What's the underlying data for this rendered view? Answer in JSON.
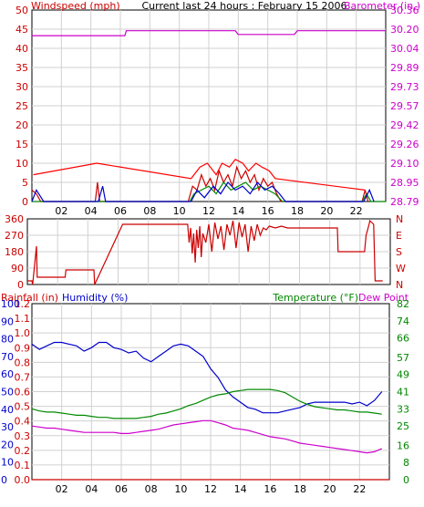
{
  "chart_data": [
    {
      "type": "line",
      "panel": "wind-barometer",
      "title": "Current last 24 hours : February 15 2006",
      "x_tick_labels": [
        "02",
        "04",
        "06",
        "08",
        "10",
        "12",
        "14",
        "16",
        "18",
        "20",
        "22"
      ],
      "xlim": [
        0,
        24
      ],
      "y_left": {
        "label": "Windspeed (mph)",
        "ylim": [
          0,
          50
        ],
        "tick_labels": [
          "0",
          "5",
          "10",
          "15",
          "20",
          "25",
          "30",
          "35",
          "40",
          "45",
          "50"
        ]
      },
      "y_right": {
        "label": "Barometer (in.)",
        "ylim": [
          28.79,
          30.36
        ],
        "tick_labels": [
          "28.79",
          "28.95",
          "29.10",
          "29.26",
          "29.42",
          "29.57",
          "29.73",
          "29.89",
          "30.04",
          "30.20",
          "30.36"
        ]
      },
      "grid": true,
      "colors": {
        "wind": "#cc0000",
        "gust": "#ff0000",
        "avg_wind": "#008800",
        "wind_alt": "#0000cc",
        "barometer": "#cc00cc"
      },
      "series": [
        {
          "name": "Barometer (in.)",
          "axis": "right",
          "color": "#cc00cc",
          "x": [
            0,
            6.3,
            6.4,
            13.8,
            14.0,
            17.8,
            18.0,
            24
          ],
          "y": [
            30.15,
            30.15,
            30.19,
            30.19,
            30.16,
            30.16,
            30.19,
            30.19
          ]
        },
        {
          "axis": "left",
          "color": "#cc0000",
          "x": [
            0,
            0.3,
            0.6,
            4.3,
            4.45,
            4.6,
            10.6,
            10.9,
            11.2,
            11.5,
            11.8,
            12.1,
            12.4,
            12.7,
            13.0,
            13.3,
            13.6,
            13.9,
            14.2,
            14.5,
            14.8,
            15.1,
            15.4,
            15.7,
            16.0,
            16.3,
            16.6,
            16.9,
            22.4,
            22.6,
            22.8
          ],
          "y": [
            3,
            2,
            0,
            0,
            5,
            0,
            0,
            4,
            3,
            7,
            4,
            6,
            3,
            8,
            5,
            7,
            4,
            9,
            6,
            8,
            5,
            7,
            3,
            6,
            4,
            5,
            2,
            0,
            0,
            3,
            0
          ]
        },
        {
          "axis": "left",
          "color": "#ff0000",
          "x": [
            0.1,
            4.4,
            10.8,
            11.4,
            11.9,
            12.5,
            12.9,
            13.4,
            13.8,
            14.3,
            14.7,
            15.2,
            15.6,
            16.1,
            16.5,
            22.6
          ],
          "y": [
            7,
            10,
            6,
            9,
            10,
            7,
            10,
            9,
            11,
            10,
            8,
            10,
            9,
            8,
            6,
            3
          ]
        },
        {
          "axis": "left",
          "color": "#008800",
          "x": [
            0,
            10.7,
            11.0,
            11.5,
            12.0,
            12.5,
            13.0,
            13.5,
            14.0,
            14.5,
            15.0,
            15.5,
            16.0,
            16.5,
            17.0,
            22.4,
            22.7,
            23.0,
            24
          ],
          "y": [
            0,
            0,
            2,
            3,
            4,
            2,
            5,
            3,
            4,
            5,
            3,
            4,
            3,
            2,
            0,
            0,
            2,
            0,
            0
          ]
        },
        {
          "axis": "left",
          "color": "#0000cc",
          "x": [
            0,
            0.3,
            0.8,
            4.5,
            4.8,
            5.0,
            10.8,
            11.2,
            11.7,
            12.3,
            12.8,
            13.3,
            13.8,
            14.3,
            14.8,
            15.3,
            15.8,
            16.3,
            16.8,
            17.2,
            22.5,
            22.9,
            23.2
          ],
          "y": [
            0,
            3,
            0,
            0,
            4,
            0,
            0,
            3,
            1,
            4,
            2,
            5,
            3,
            4,
            2,
            5,
            3,
            4,
            2,
            0,
            0,
            3,
            0
          ]
        }
      ]
    },
    {
      "type": "line",
      "panel": "wind-direction",
      "xlim": [
        0,
        24
      ],
      "y_left": {
        "ylim": [
          0,
          360
        ],
        "tick_labels": [
          "0",
          "90",
          "180",
          "270",
          "360"
        ]
      },
      "y_right": {
        "tick_labels": [
          "N",
          "E",
          "S",
          "W",
          "N"
        ]
      },
      "grid": true,
      "colors": {
        "direction": "#cc0000"
      },
      "series": [
        {
          "axis": "left",
          "color": "#cc0000",
          "x": [
            0,
            0.3,
            0.35,
            0.6,
            0.65,
            2.5,
            2.55,
            4.4,
            4.45,
            6.3,
            6.35,
            10.6,
            10.7,
            10.8,
            10.9,
            11.0,
            11.1,
            11.2,
            11.3,
            11.4,
            11.5,
            11.6,
            11.8,
            12.0,
            12.2,
            12.4,
            12.6,
            12.8,
            13.0,
            13.2,
            13.4,
            13.6,
            13.8,
            14.0,
            14.2,
            14.4,
            14.6,
            14.8,
            15.0,
            15.2,
            15.4,
            15.6,
            15.8,
            16.0,
            16.4,
            16.8,
            17.2,
            18.4,
            18.5,
            20.5,
            20.55,
            22.3,
            22.4,
            22.6,
            22.65,
            22.9,
            23.0,
            23.5
          ],
          "y": [
            20,
            20,
            0,
            210,
            40,
            40,
            80,
            80,
            0,
            330,
            330,
            330,
            230,
            310,
            170,
            280,
            120,
            300,
            200,
            320,
            150,
            280,
            230,
            330,
            180,
            340,
            250,
            320,
            190,
            330,
            270,
            350,
            200,
            340,
            260,
            330,
            180,
            320,
            240,
            330,
            270,
            310,
            300,
            320,
            310,
            320,
            310,
            310,
            310,
            310,
            180,
            180,
            270,
            330,
            350,
            330,
            20,
            20
          ]
        }
      ]
    },
    {
      "type": "line",
      "panel": "rain-humidity-temperature",
      "x_tick_labels": [
        "02",
        "04",
        "06",
        "08",
        "10",
        "12",
        "14",
        "16",
        "18",
        "20",
        "22"
      ],
      "xlim": [
        0,
        24
      ],
      "y_rain": {
        "label": "Rainfall (in)",
        "ylim": [
          0,
          1.2
        ],
        "tick_labels": [
          "0.0",
          "0.1",
          "0.2",
          "0.3",
          "0.4",
          "0.5",
          "0.6",
          "0.7",
          "0.8",
          "0.9",
          "1.0",
          "1.1",
          "1.2"
        ]
      },
      "y_humidity": {
        "label": "Humidity (%)",
        "ylim": [
          0,
          100
        ],
        "tick_labels": [
          "0",
          "10",
          "20",
          "30",
          "40",
          "50",
          "60",
          "70",
          "80",
          "90",
          "100"
        ]
      },
      "y_right": {
        "label": "Temperature (°F)",
        "label2": "Dew Point",
        "ylim": [
          0,
          82
        ],
        "tick_labels": [
          "0",
          "8",
          "16",
          "25",
          "33",
          "41",
          "49",
          "57",
          "66",
          "74",
          "82"
        ]
      },
      "grid": true,
      "colors": {
        "humidity": "#0000cc",
        "temperature": "#008800",
        "dew_point": "#cc00cc",
        "rainfall": "#cc0000"
      },
      "series": [
        {
          "name": "Humidity (%)",
          "axis": "humidity",
          "color": "#0000cc",
          "x": [
            0,
            0.5,
            1,
            1.5,
            2,
            2.5,
            3,
            3.5,
            4,
            4.5,
            5,
            5.5,
            6,
            6.5,
            7,
            7.5,
            8,
            8.5,
            9,
            9.5,
            10,
            10.5,
            11,
            11.5,
            12,
            12.5,
            13,
            13.5,
            14,
            14.5,
            15,
            15.5,
            16,
            16.5,
            17,
            17.5,
            18,
            18.5,
            19,
            19.5,
            20,
            20.5,
            21,
            21.5,
            22,
            22.5,
            23,
            23.5
          ],
          "y": [
            77,
            74,
            76,
            78,
            78,
            77,
            76,
            73,
            75,
            78,
            78,
            75,
            74,
            72,
            73,
            69,
            67,
            70,
            73,
            76,
            77,
            76,
            73,
            70,
            63,
            58,
            51,
            47,
            44,
            41,
            40,
            38,
            38,
            38,
            39,
            40,
            41,
            43,
            44,
            44,
            44,
            44,
            44,
            43,
            44,
            42,
            45,
            50
          ]
        },
        {
          "name": "Temperature (°F)",
          "axis": "right",
          "color": "#008800",
          "x": [
            0,
            0.5,
            1,
            1.5,
            2,
            2.5,
            3,
            3.5,
            4,
            4.5,
            5,
            5.5,
            6,
            6.5,
            7,
            7.5,
            8,
            8.5,
            9,
            9.5,
            10,
            10.5,
            11,
            11.5,
            12,
            12.5,
            13,
            13.5,
            14,
            14.5,
            15,
            15.5,
            16,
            16.5,
            17,
            17.5,
            18,
            18.5,
            19,
            19.5,
            20,
            20.5,
            21,
            21.5,
            22,
            22.5,
            23,
            23.5
          ],
          "y": [
            33,
            32,
            31.5,
            31.5,
            31,
            30.5,
            30,
            30,
            29.5,
            29,
            29,
            28.5,
            28.5,
            28.5,
            28.5,
            29,
            29.5,
            30.5,
            31,
            32,
            33,
            34.5,
            35.5,
            37,
            38.5,
            39.5,
            40,
            41,
            41.5,
            42,
            42,
            42,
            42,
            41.5,
            40.5,
            38.5,
            36.5,
            35,
            34,
            33.5,
            33,
            32.5,
            32.5,
            32,
            31.5,
            31.5,
            31,
            30.5
          ]
        },
        {
          "name": "Dew Point",
          "axis": "right",
          "color": "#cc00cc",
          "x": [
            0,
            0.5,
            1,
            1.5,
            2,
            2.5,
            3,
            3.5,
            4,
            4.5,
            5,
            5.5,
            6,
            6.5,
            7,
            7.5,
            8,
            8.5,
            9,
            9.5,
            10,
            10.5,
            11,
            11.5,
            12,
            12.5,
            13,
            13.5,
            14,
            14.5,
            15,
            15.5,
            16,
            16.5,
            17,
            17.5,
            18,
            18.5,
            19,
            19.5,
            20,
            20.5,
            21,
            21.5,
            22,
            22.5,
            23,
            23.5
          ],
          "y": [
            25,
            24.5,
            24,
            24,
            23.5,
            23,
            22.5,
            22,
            22,
            22,
            22,
            22,
            21.5,
            21.5,
            22,
            22.5,
            23,
            23.5,
            24.5,
            25.5,
            26,
            26.5,
            27,
            27.5,
            27.5,
            26.5,
            25.5,
            24,
            23.5,
            23,
            22,
            21,
            20,
            19.5,
            19,
            18,
            17,
            16.5,
            16,
            15.5,
            15,
            14.5,
            14,
            13.5,
            13,
            12.5,
            13,
            14.5
          ]
        },
        {
          "name": "Rainfall (in)",
          "axis": "rain",
          "color": "#cc0000",
          "x": [
            0,
            24
          ],
          "y": [
            0,
            0
          ]
        }
      ]
    }
  ]
}
